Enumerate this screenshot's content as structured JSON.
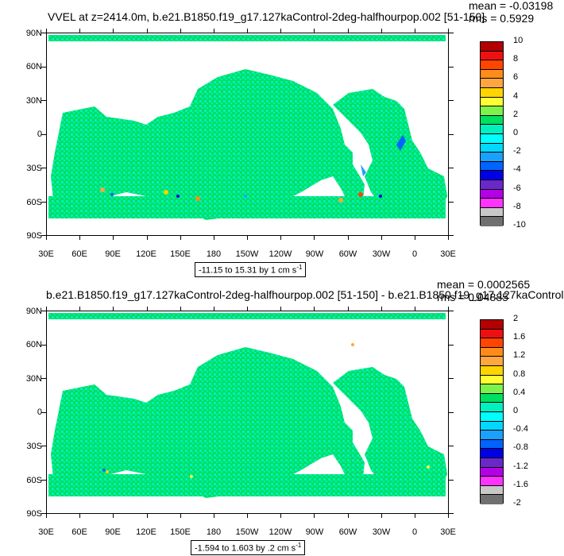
{
  "panels": [
    {
      "title": "VVEL at z=2414.0m, b.e21.B1850.f19_g17.127kaControl-2deg-halfhourpop.002 [51-150]",
      "mean": "mean = -0.03198",
      "rms": "rms = 0.5929",
      "range_label": "-11.15 to 15.31 by 1 cm s",
      "range_sup": "-1",
      "colorbar": {
        "labels": [
          "10",
          "8",
          "6",
          "4",
          "2",
          "0",
          "-2",
          "-4",
          "-6",
          "-8",
          "-10"
        ],
        "colors": [
          "#b30000",
          "#ee1010",
          "#ff4500",
          "#ff8c1a",
          "#ffa640",
          "#ffd400",
          "#ffff33",
          "#7df24a",
          "#00e060",
          "#00f0c0",
          "#00ffff",
          "#00d8ff",
          "#1aa0ff",
          "#0064ff",
          "#0000e6",
          "#6a28c8",
          "#b400e6",
          "#ff33ff",
          "#c8c8c8",
          "#707070"
        ]
      }
    },
    {
      "title": "b.e21.B1850.f19_g17.127kaControl-2deg-halfhourpop.002 [51-150] - b.e21.B1850.f19_g17.127kaControl",
      "mean": "mean = 0.0002565",
      "rms": "rms = 0.04885",
      "range_label": "-1.594 to 1.603 by .2 cm s",
      "range_sup": "-1",
      "colorbar": {
        "labels": [
          "2",
          "1.6",
          "1.2",
          "0.8",
          "0.4",
          "0",
          "-0.4",
          "-0.8",
          "-1.2",
          "-1.6",
          "-2"
        ],
        "colors": [
          "#b30000",
          "#ee1010",
          "#ff4500",
          "#ff8c1a",
          "#ffa640",
          "#ffd400",
          "#ffff33",
          "#7df24a",
          "#00e060",
          "#00f0c0",
          "#00ffff",
          "#00d8ff",
          "#1aa0ff",
          "#0064ff",
          "#0000e6",
          "#6a28c8",
          "#b400e6",
          "#ff33ff",
          "#c8c8c8",
          "#707070"
        ]
      }
    }
  ],
  "lat_labels": [
    "90N",
    "60N",
    "30N",
    "0",
    "30S",
    "60S",
    "90S"
  ],
  "lon_labels": [
    "30E",
    "60E",
    "90E",
    "120E",
    "150E",
    "180",
    "150W",
    "120W",
    "90W",
    "60W",
    "30W",
    "0",
    "30E"
  ],
  "colors": {
    "ocean_primary": "#00e060",
    "ocean_secondary": "#00f0c0",
    "land": "#ffffff"
  }
}
